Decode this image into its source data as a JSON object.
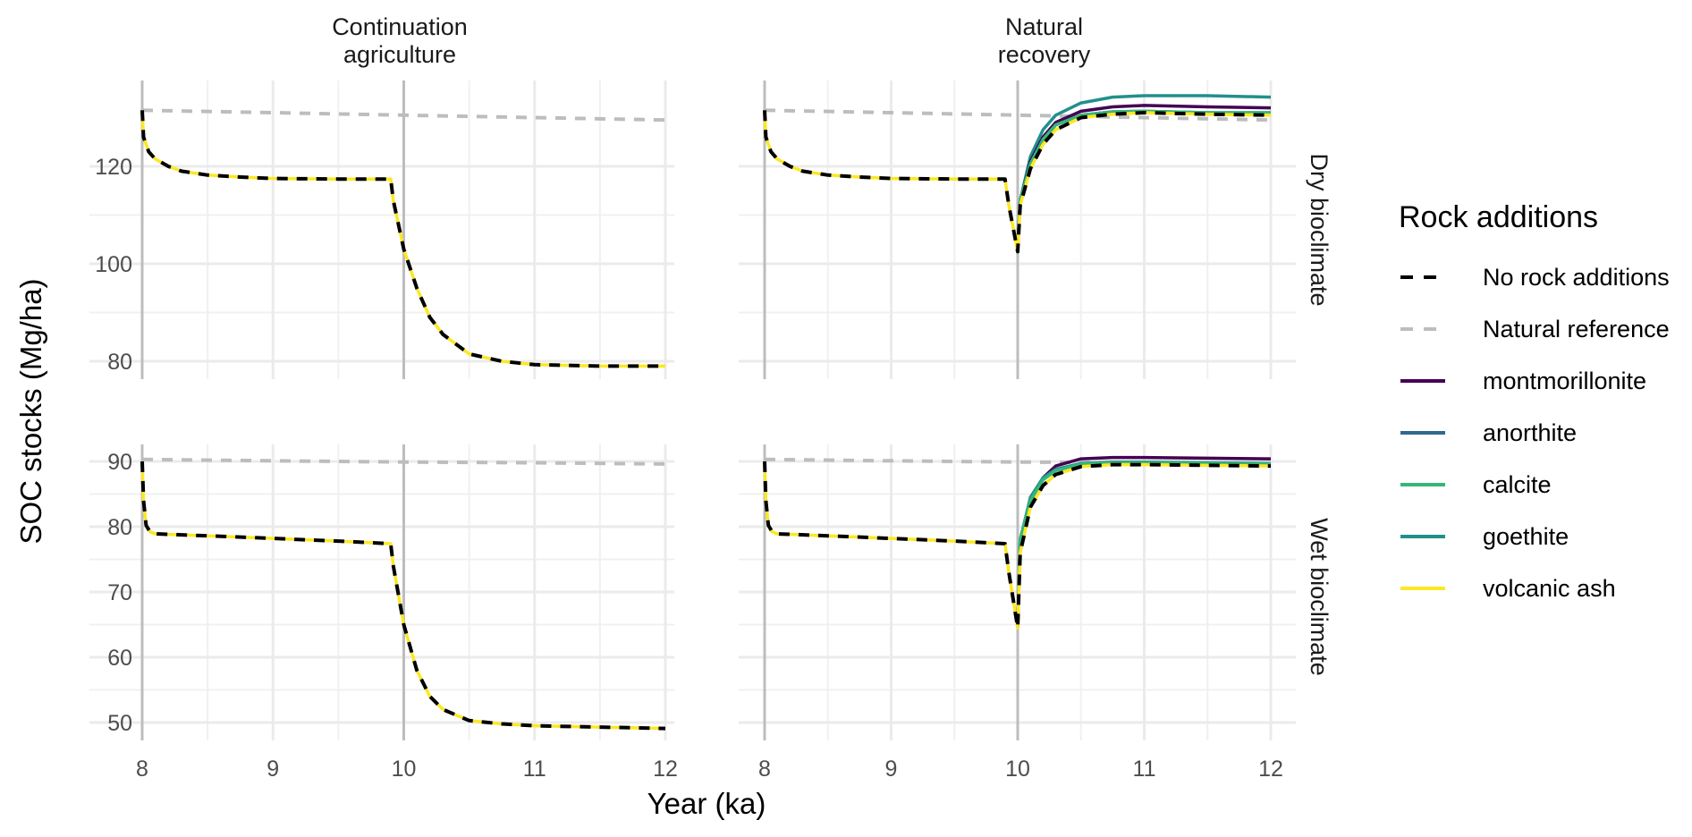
{
  "chart_data": {
    "type": "line",
    "title": "",
    "xlabel": "Year (ka)",
    "ylabel": "SOC stocks (Mg/ha)",
    "facet_columns": [
      "Continuation\nagriculture",
      "Natural\nrecovery"
    ],
    "facet_rows": [
      "Dry bioclimate",
      "Wet bioclimate"
    ],
    "x_ticks": [
      8,
      9,
      10,
      11,
      12
    ],
    "xlim": [
      8,
      12
    ],
    "row_axes": [
      {
        "ylim": [
          76,
          135
        ],
        "y_ticks": [
          80,
          100,
          120
        ]
      },
      {
        "ylim": [
          46,
          92
        ],
        "y_ticks": [
          50,
          60,
          70,
          80,
          90
        ]
      }
    ],
    "grid": true,
    "event_lines_x": [
      8,
      10
    ],
    "legend": {
      "title": "Rock additions",
      "placement": "right",
      "entries": [
        {
          "label": "No rock additions",
          "color": "#000000",
          "dash": "dashed"
        },
        {
          "label": "Natural reference",
          "color": "#bdbdbd",
          "dash": "dashed"
        },
        {
          "label": "montmorillonite",
          "color": "#440154",
          "dash": "solid"
        },
        {
          "label": "anorthite",
          "color": "#31688e",
          "dash": "solid"
        },
        {
          "label": "calcite",
          "color": "#35b779",
          "dash": "solid"
        },
        {
          "label": "goethite",
          "color": "#21908c",
          "dash": "solid"
        },
        {
          "label": "volcanic ash",
          "color": "#fde725",
          "dash": "solid"
        }
      ]
    },
    "panels": [
      {
        "row": 0,
        "col": 0,
        "series": [
          {
            "name": "Natural reference",
            "x": [
              8,
              9,
              10,
              11,
              12
            ],
            "y": [
              131.5,
              131.0,
              130.5,
              130.0,
              129.5
            ]
          },
          {
            "name": "volcanic ash",
            "x": [
              8,
              8.01,
              8.05,
              8.1,
              8.2,
              8.3,
              8.5,
              8.75,
              9,
              9.5,
              9.9,
              9.92,
              10,
              10.1,
              10.2,
              10.3,
              10.5,
              10.75,
              11,
              11.5,
              12
            ],
            "y": [
              131.5,
              126,
              123,
              121.5,
              120,
              119,
              118.2,
              117.8,
              117.5,
              117.4,
              117.4,
              113,
              103,
              95,
              89,
              85.5,
              81.5,
              80,
              79.3,
              79,
              79
            ]
          },
          {
            "name": "No rock additions",
            "x": [
              8,
              8.01,
              8.05,
              8.1,
              8.2,
              8.3,
              8.5,
              8.75,
              9,
              9.5,
              9.9,
              9.92,
              10,
              10.1,
              10.2,
              10.3,
              10.5,
              10.75,
              11,
              11.5,
              12
            ],
            "y": [
              131.5,
              126,
              123,
              121.5,
              120,
              119,
              118.2,
              117.8,
              117.5,
              117.4,
              117.4,
              113,
              103,
              95,
              89,
              85.5,
              81.5,
              80,
              79.3,
              79,
              79
            ]
          }
        ]
      },
      {
        "row": 0,
        "col": 1,
        "series": [
          {
            "name": "Natural reference",
            "x": [
              8,
              9,
              10,
              11,
              12
            ],
            "y": [
              131.5,
              131.0,
              130.5,
              130.0,
              129.5
            ]
          },
          {
            "name": "goethite",
            "x": [
              10,
              10.02,
              10.1,
              10.2,
              10.3,
              10.5,
              10.75,
              11,
              11.5,
              12
            ],
            "y": [
              103,
              113,
              122,
              127.5,
              130.5,
              133,
              134.2,
              134.5,
              134.5,
              134.2
            ]
          },
          {
            "name": "montmorillonite",
            "x": [
              10,
              10.02,
              10.1,
              10.2,
              10.3,
              10.5,
              10.75,
              11,
              11.5,
              12
            ],
            "y": [
              103,
              113,
              121,
              126,
              129,
              131.3,
              132.2,
              132.5,
              132.2,
              132
            ]
          },
          {
            "name": "anorthite",
            "x": [
              10,
              10.02,
              10.1,
              10.2,
              10.3,
              10.5,
              10.75,
              11,
              11.5,
              12
            ],
            "y": [
              103,
              113,
              120.5,
              125.5,
              128.5,
              130.5,
              131.2,
              131.3,
              131,
              131
            ]
          },
          {
            "name": "calcite",
            "x": [
              10,
              10.02,
              10.1,
              10.2,
              10.3,
              10.5,
              10.75,
              11,
              11.5,
              12
            ],
            "y": [
              103,
              113,
              120.5,
              125.5,
              128.5,
              130.5,
              131.2,
              131.3,
              131,
              131
            ]
          },
          {
            "name": "volcanic ash",
            "x": [
              8,
              8.01,
              8.05,
              8.1,
              8.2,
              8.3,
              8.5,
              8.75,
              9,
              9.5,
              9.9,
              9.93,
              10,
              10.02,
              10.1,
              10.2,
              10.3,
              10.5,
              10.75,
              11,
              11.5,
              12
            ],
            "y": [
              131.5,
              126,
              123,
              121.5,
              120,
              119,
              118.2,
              117.8,
              117.5,
              117.4,
              117.4,
              112,
              102.5,
              112,
              119.5,
              124.5,
              127.5,
              130,
              130.7,
              131,
              130.7,
              130.5
            ]
          },
          {
            "name": "No rock additions",
            "x": [
              8,
              8.01,
              8.05,
              8.1,
              8.2,
              8.3,
              8.5,
              8.75,
              9,
              9.5,
              9.9,
              9.93,
              10,
              10.02,
              10.1,
              10.2,
              10.3,
              10.5,
              10.75,
              11,
              11.5,
              12
            ],
            "y": [
              131.5,
              126,
              123,
              121.5,
              120,
              119,
              118.2,
              117.8,
              117.5,
              117.4,
              117.4,
              112,
              102.5,
              112,
              119.5,
              124.5,
              127.5,
              130,
              130.7,
              131,
              130.7,
              130.5
            ]
          }
        ]
      },
      {
        "row": 1,
        "col": 0,
        "series": [
          {
            "name": "Natural reference",
            "x": [
              8,
              9,
              10,
              11,
              12
            ],
            "y": [
              90.3,
              90.1,
              89.9,
              89.8,
              89.6
            ]
          },
          {
            "name": "volcanic ash",
            "x": [
              8,
              8.01,
              8.03,
              8.06,
              8.1,
              8.5,
              9,
              9.5,
              9.9,
              9.92,
              10,
              10.1,
              10.2,
              10.3,
              10.5,
              10.75,
              11,
              11.5,
              12
            ],
            "y": [
              90,
              84,
              80.2,
              79.2,
              78.9,
              78.6,
              78.2,
              77.8,
              77.4,
              74,
              65,
              58,
              54,
              52,
              50.3,
              49.8,
              49.5,
              49.3,
              49.1
            ]
          },
          {
            "name": "No rock additions",
            "x": [
              8,
              8.01,
              8.03,
              8.06,
              8.1,
              8.5,
              9,
              9.5,
              9.9,
              9.92,
              10,
              10.1,
              10.2,
              10.3,
              10.5,
              10.75,
              11,
              11.5,
              12
            ],
            "y": [
              90,
              84,
              80.2,
              79.2,
              78.9,
              78.6,
              78.2,
              77.8,
              77.4,
              74,
              65,
              58,
              54,
              52,
              50.3,
              49.8,
              49.5,
              49.3,
              49.1
            ]
          }
        ]
      },
      {
        "row": 1,
        "col": 1,
        "series": [
          {
            "name": "Natural reference",
            "x": [
              8,
              9,
              10,
              11,
              12
            ],
            "y": [
              90.3,
              90.1,
              89.9,
              89.8,
              89.6
            ]
          },
          {
            "name": "montmorillonite",
            "x": [
              10,
              10.02,
              10.1,
              10.2,
              10.3,
              10.5,
              10.75,
              11,
              11.5,
              12
            ],
            "y": [
              64.5,
              78,
              84,
              87.5,
              89.3,
              90.4,
              90.6,
              90.6,
              90.5,
              90.4
            ]
          },
          {
            "name": "goethite",
            "x": [
              10,
              10.02,
              10.1,
              10.2,
              10.3,
              10.5,
              10.75,
              11,
              11.5,
              12
            ],
            "y": [
              64.5,
              78,
              84.5,
              87.5,
              88.8,
              89.7,
              89.9,
              89.9,
              89.8,
              89.7
            ]
          },
          {
            "name": "anorthite",
            "x": [
              10,
              10.02,
              10.1,
              10.2,
              10.3,
              10.5,
              10.75,
              11,
              11.5,
              12
            ],
            "y": [
              64.5,
              78,
              84,
              87.2,
              88.6,
              89.6,
              89.8,
              89.8,
              89.7,
              89.6
            ]
          },
          {
            "name": "calcite",
            "x": [
              10,
              10.02,
              10.1,
              10.2,
              10.3,
              10.5,
              10.75,
              11,
              11.5,
              12
            ],
            "y": [
              64.5,
              78,
              84,
              87.2,
              88.6,
              89.6,
              89.8,
              89.8,
              89.7,
              89.6
            ]
          },
          {
            "name": "volcanic ash",
            "x": [
              8,
              8.01,
              8.03,
              8.06,
              8.1,
              8.5,
              9,
              9.5,
              9.9,
              9.93,
              10,
              10.02,
              10.1,
              10.2,
              10.3,
              10.5,
              10.75,
              11,
              11.5,
              12
            ],
            "y": [
              90,
              84,
              80.2,
              79.2,
              78.9,
              78.6,
              78.2,
              77.8,
              77.4,
              73,
              64.5,
              76,
              83,
              86.3,
              88,
              89.2,
              89.5,
              89.5,
              89.4,
              89.3
            ]
          },
          {
            "name": "No rock additions",
            "x": [
              8,
              8.01,
              8.03,
              8.06,
              8.1,
              8.5,
              9,
              9.5,
              9.9,
              9.93,
              10,
              10.02,
              10.1,
              10.2,
              10.3,
              10.5,
              10.75,
              11,
              11.5,
              12
            ],
            "y": [
              90,
              84,
              80.2,
              79.2,
              78.9,
              78.6,
              78.2,
              77.8,
              77.4,
              73,
              64.5,
              76,
              83,
              86.3,
              88,
              89.2,
              89.5,
              89.5,
              89.4,
              89.3
            ]
          }
        ]
      }
    ]
  }
}
